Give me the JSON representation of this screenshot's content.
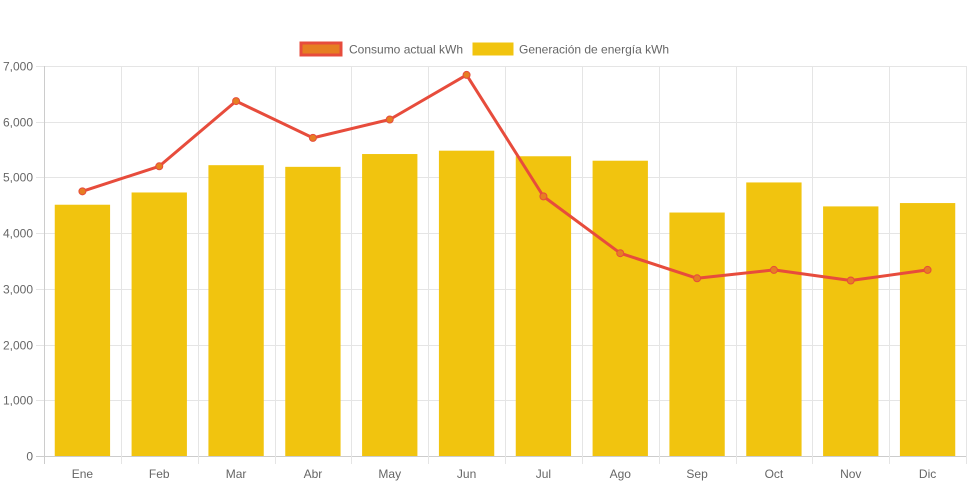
{
  "chart_data": {
    "type": "bar",
    "title": "",
    "xlabel": "",
    "ylabel": "",
    "categories": [
      "Ene",
      "Feb",
      "Mar",
      "Abr",
      "May",
      "Jun",
      "Jul",
      "Ago",
      "Sep",
      "Oct",
      "Nov",
      "Dic"
    ],
    "ylim": [
      0,
      7000
    ],
    "yticks": [
      0,
      1000,
      2000,
      3000,
      4000,
      5000,
      6000,
      7000
    ],
    "ytick_labels": [
      "0",
      "1,000",
      "2,000",
      "3,000",
      "4,000",
      "5,000",
      "6,000",
      "7,000"
    ],
    "grid": true,
    "legend_position": "top-center",
    "series": [
      {
        "name": "Consumo actual kWh",
        "type": "line",
        "color": "#e74c3c",
        "point_color": "#e67e22",
        "values": [
          4750,
          5200,
          6370,
          5710,
          6040,
          6840,
          4660,
          3640,
          3190,
          3340,
          3150,
          3340
        ]
      },
      {
        "name": "Generación de energía kWh",
        "type": "bar",
        "color": "#f1c40f",
        "values": [
          4510,
          4730,
          5220,
          5190,
          5420,
          5480,
          5380,
          5300,
          4370,
          4910,
          4480,
          4540
        ]
      }
    ]
  },
  "legend": {
    "items": [
      {
        "label": "Consumo actual kWh",
        "fill": "#e67e22",
        "stroke": "#e74c3c"
      },
      {
        "label": "Generación de energía kWh",
        "fill": "#f1c40f",
        "stroke": "#f1c40f"
      }
    ]
  }
}
